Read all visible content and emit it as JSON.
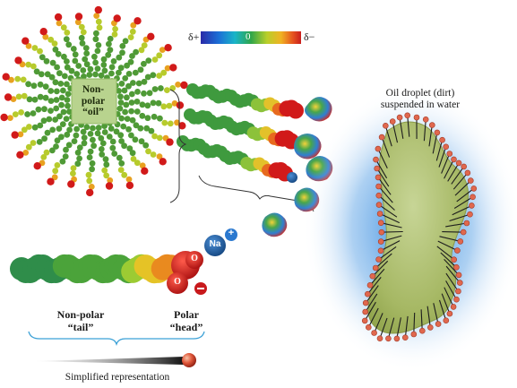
{
  "micelle": {
    "core_line1": "Non-",
    "core_line2": "polar",
    "core_line3": "“oil”"
  },
  "scale": {
    "left_symbol": "δ+",
    "center_value": "0",
    "right_symbol": "δ−"
  },
  "sodium_ion": {
    "symbol": "Na",
    "charge": "+"
  },
  "head_group": {
    "oxygen_top": "O",
    "oxygen_bottom": "O",
    "charge": "−"
  },
  "labels": {
    "tail_line1": "Non-polar",
    "tail_line2": "“tail”",
    "head_line1": "Polar",
    "head_line2": "“head”",
    "simplified": "Simplified representation",
    "droplet_line1": "Oil droplet (dirt)",
    "droplet_line2": "suspended in water"
  },
  "colors": {
    "tail_green": "#4f9a36",
    "head_red": "#d11a1a",
    "sodium_blue": "#1f5da6",
    "oil_green": "#a9bb6c",
    "water_blue": "#3f8fe0"
  }
}
